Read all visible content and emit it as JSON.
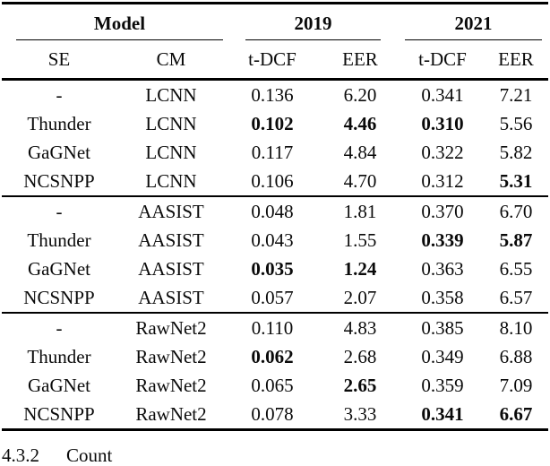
{
  "table": {
    "groups": [
      "Model",
      "2019",
      "2021"
    ],
    "columns": [
      "SE",
      "CM",
      "t-DCF",
      "EER",
      "t-DCF",
      "EER"
    ],
    "blocks": [
      {
        "rows": [
          {
            "cells": [
              {
                "v": "-"
              },
              {
                "v": "LCNN"
              },
              {
                "v": "0.136"
              },
              {
                "v": "6.20"
              },
              {
                "v": "0.341"
              },
              {
                "v": "7.21"
              }
            ]
          },
          {
            "cells": [
              {
                "v": "Thunder"
              },
              {
                "v": "LCNN"
              },
              {
                "v": "0.102",
                "bold": true
              },
              {
                "v": "4.46",
                "bold": true
              },
              {
                "v": "0.310",
                "bold": true
              },
              {
                "v": "5.56"
              }
            ]
          },
          {
            "cells": [
              {
                "v": "GaGNet"
              },
              {
                "v": "LCNN"
              },
              {
                "v": "0.117"
              },
              {
                "v": "4.84"
              },
              {
                "v": "0.322"
              },
              {
                "v": "5.82"
              }
            ]
          },
          {
            "cells": [
              {
                "v": "NCSNPP"
              },
              {
                "v": "LCNN"
              },
              {
                "v": "0.106"
              },
              {
                "v": "4.70"
              },
              {
                "v": "0.312"
              },
              {
                "v": "5.31",
                "bold": true
              }
            ]
          }
        ]
      },
      {
        "rows": [
          {
            "cells": [
              {
                "v": "-"
              },
              {
                "v": "AASIST"
              },
              {
                "v": "0.048"
              },
              {
                "v": "1.81"
              },
              {
                "v": "0.370"
              },
              {
                "v": "6.70"
              }
            ]
          },
          {
            "cells": [
              {
                "v": "Thunder"
              },
              {
                "v": "AASIST"
              },
              {
                "v": "0.043"
              },
              {
                "v": "1.55"
              },
              {
                "v": "0.339",
                "bold": true
              },
              {
                "v": "5.87",
                "bold": true
              }
            ]
          },
          {
            "cells": [
              {
                "v": "GaGNet"
              },
              {
                "v": "AASIST"
              },
              {
                "v": "0.035",
                "bold": true
              },
              {
                "v": "1.24",
                "bold": true
              },
              {
                "v": "0.363"
              },
              {
                "v": "6.55"
              }
            ]
          },
          {
            "cells": [
              {
                "v": "NCSNPP"
              },
              {
                "v": "AASIST"
              },
              {
                "v": "0.057"
              },
              {
                "v": "2.07"
              },
              {
                "v": "0.358"
              },
              {
                "v": "6.57"
              }
            ]
          }
        ]
      },
      {
        "rows": [
          {
            "cells": [
              {
                "v": "-"
              },
              {
                "v": "RawNet2"
              },
              {
                "v": "0.110"
              },
              {
                "v": "4.83"
              },
              {
                "v": "0.385"
              },
              {
                "v": "8.10"
              }
            ]
          },
          {
            "cells": [
              {
                "v": "Thunder"
              },
              {
                "v": "RawNet2"
              },
              {
                "v": "0.062",
                "bold": true
              },
              {
                "v": "2.68"
              },
              {
                "v": "0.349"
              },
              {
                "v": "6.88"
              }
            ]
          },
          {
            "cells": [
              {
                "v": "GaGNet"
              },
              {
                "v": "RawNet2"
              },
              {
                "v": "0.065"
              },
              {
                "v": "2.65",
                "bold": true
              },
              {
                "v": "0.359"
              },
              {
                "v": "7.09"
              }
            ]
          },
          {
            "cells": [
              {
                "v": "NCSNPP"
              },
              {
                "v": "RawNet2"
              },
              {
                "v": "0.078"
              },
              {
                "v": "3.33"
              },
              {
                "v": "0.341",
                "bold": true
              },
              {
                "v": "6.67",
                "bold": true
              }
            ]
          }
        ]
      }
    ]
  },
  "footer": {
    "section_number": "4.3.2",
    "section_title": "Count"
  }
}
